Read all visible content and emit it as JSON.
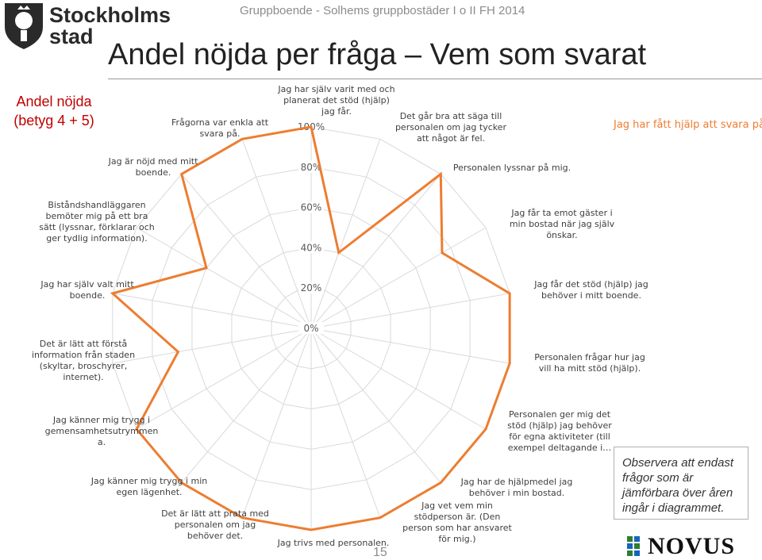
{
  "header": {
    "logo_text_line1": "Stockholms",
    "logo_text_line2": "stad",
    "top_title": "Gruppboende - Solhems gruppbostäder I o II  FH 2014",
    "main_title": "Andel nöjda per fråga – Vem som svarat",
    "side_label_line1": "Andel nöjda",
    "side_label_line2": "(betyg 4 + 5)"
  },
  "note": {
    "text": "Observera att endast frågor som är jämförbara över åren ingår i diagrammet."
  },
  "footer": {
    "page_number": "15",
    "brand_text": "NOVUS"
  },
  "colors": {
    "series": "#ED7D31",
    "grid": "#d9d9d9",
    "accent_red": "#c00000"
  },
  "chart_data": {
    "type": "radar",
    "legend_position": "top-right",
    "rlim": [
      0,
      100
    ],
    "ticks": [
      0,
      20,
      40,
      60,
      80,
      100
    ],
    "tick_labels": [
      "0%",
      "20%",
      "40%",
      "60%",
      "80%",
      "100%"
    ],
    "categories": [
      [
        "Jag har själv varit med och",
        "planerat det stöd (hjälp)",
        "jag får."
      ],
      [
        "Det går bra att säga till",
        "personalen om jag tycker",
        "att något är fel."
      ],
      [
        "Personalen lyssnar på mig."
      ],
      [
        "Jag får ta emot gäster i",
        "min bostad när jag själv",
        "önskar."
      ],
      [
        "Jag får det stöd (hjälp) jag",
        "behöver i mitt boende."
      ],
      [
        "Personalen frågar hur jag",
        "vill ha mitt stöd (hjälp)."
      ],
      [
        "Personalen ger mig det",
        "stöd (hjälp) jag behöver",
        "för egna aktiviteter (till",
        "exempel deltagande i…"
      ],
      [
        "Jag har de hjälpmedel jag",
        "behöver i min bostad."
      ],
      [
        "Jag vet vem min",
        "stödperson är. (Den",
        "person som har ansvaret",
        "för mig.)"
      ],
      [
        "Jag trivs med personalen."
      ],
      [
        "Det är lätt att prata med",
        "personalen om jag",
        "behöver det."
      ],
      [
        "Jag känner mig trygg i min",
        "egen lägenhet."
      ],
      [
        "Jag känner mig trygg i",
        "gemensamhetsutrymmen",
        "a."
      ],
      [
        "Det är lätt att förstå",
        "information från staden",
        "(skyltar, broschyrer,",
        "internet)."
      ],
      [
        "Jag har själv valt mitt",
        "boende."
      ],
      [
        "Biståndshandläggaren",
        "bemöter mig på ett bra",
        "sätt (lyssnar, förklarar och",
        "ger tydlig information)."
      ],
      [
        "Jag är nöjd med mitt",
        "boende."
      ],
      [
        "Frågorna var enkla att",
        "svara på."
      ]
    ],
    "series": [
      {
        "name": "Jag har fått hjälp att svara på frågorna",
        "values": [
          100,
          40,
          100,
          75,
          100,
          100,
          100,
          100,
          100,
          100,
          100,
          100,
          100,
          67,
          100,
          60,
          100,
          100
        ]
      }
    ]
  }
}
